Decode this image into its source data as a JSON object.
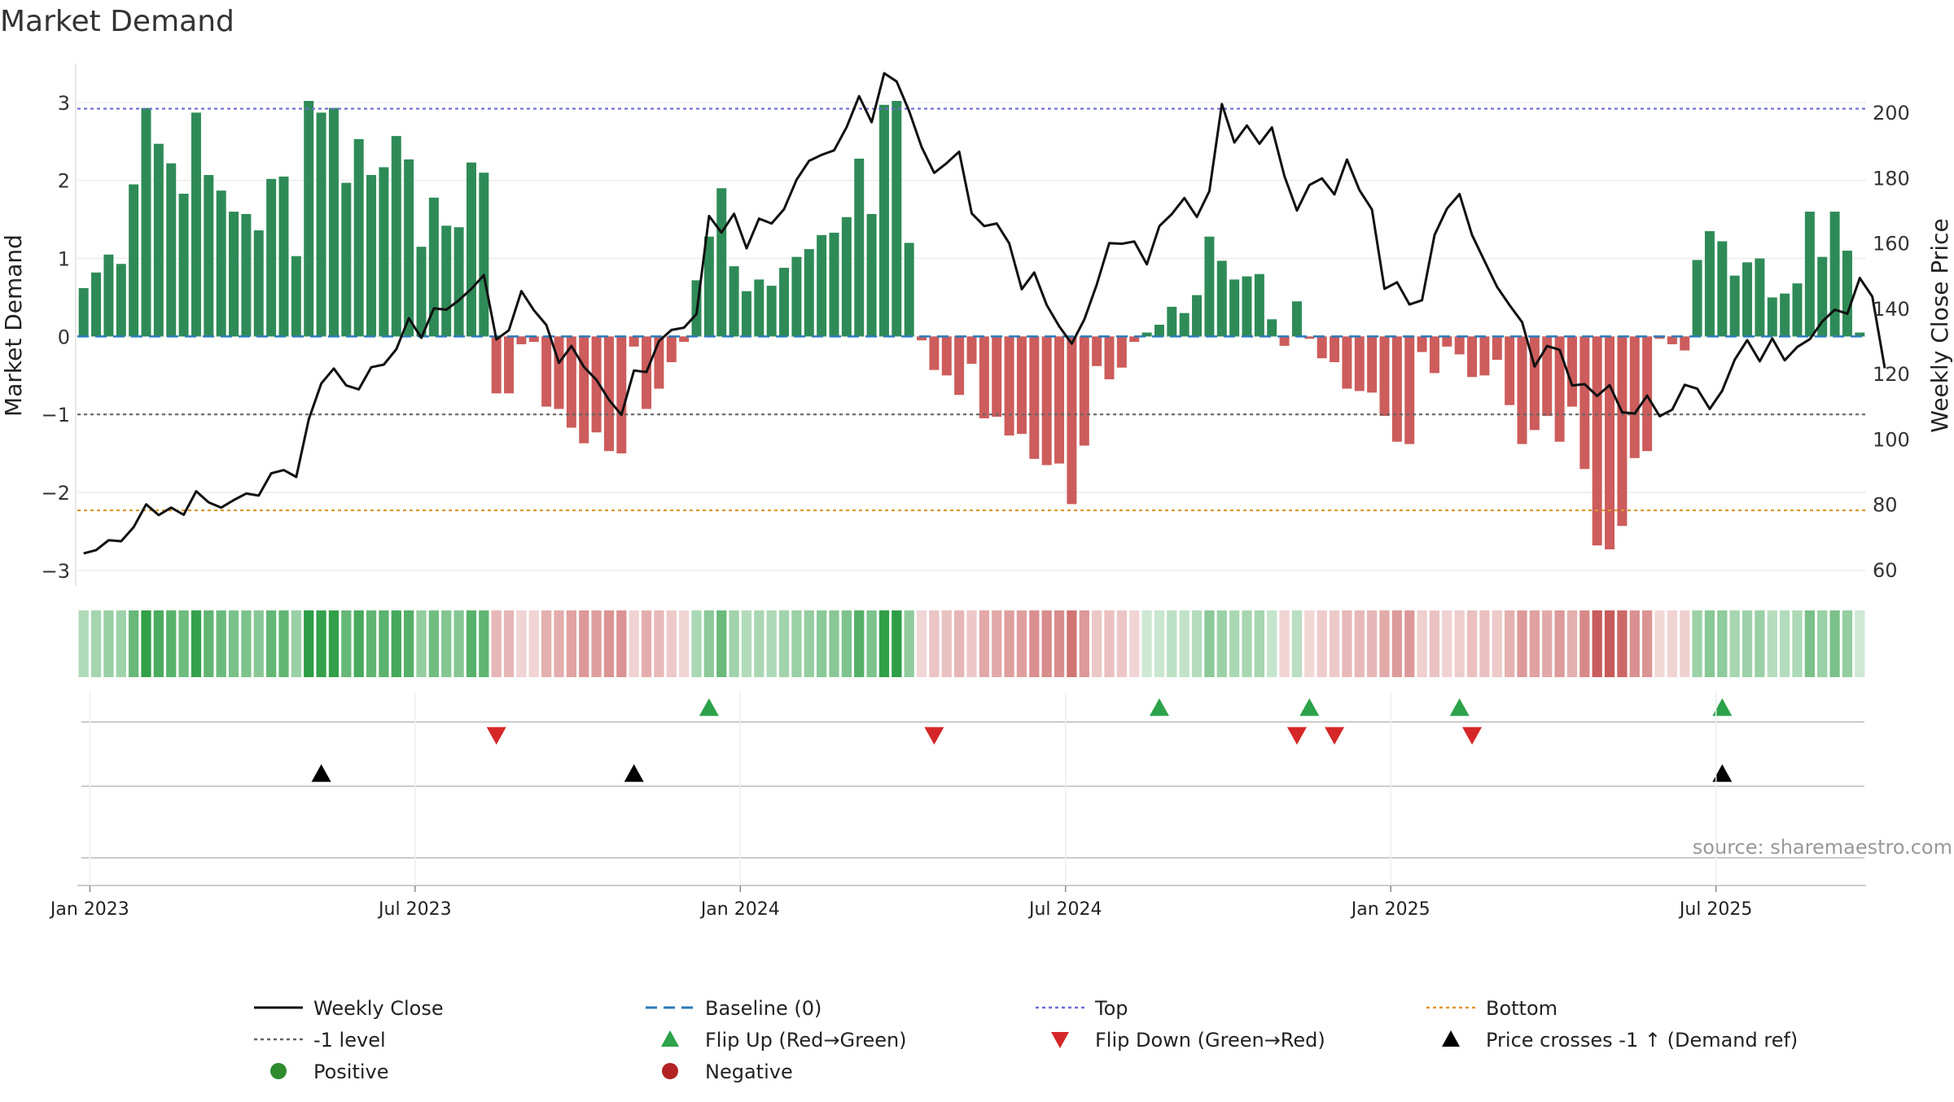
{
  "chart_data": {
    "type": "bar",
    "title": "Market Demand",
    "ylabel_left": "Market Demand",
    "ylabel_right": "Weekly Close Price",
    "ylim_left": [
      -3.2,
      3.5
    ],
    "ylim_right": [
      55,
      215
    ],
    "yticks_left": [
      3,
      2,
      1,
      0,
      -1,
      -2,
      -3
    ],
    "ytick_labels_left": [
      "3",
      "2",
      "1",
      "0",
      "−1",
      "−2",
      "−3"
    ],
    "yticks_right": [
      200,
      180,
      160,
      140,
      120,
      100,
      80,
      60
    ],
    "ytick_labels_right": [
      "200",
      "180",
      "160",
      "140",
      "120",
      "100",
      "80",
      "60"
    ],
    "x_start": "2022-12-26",
    "x_ticks": [
      {
        "label": "Jan 2023",
        "week": 1
      },
      {
        "label": "Jul 2023",
        "week": 27
      },
      {
        "label": "Jan 2024",
        "week": 53
      },
      {
        "label": "Jul 2024",
        "week": 79
      },
      {
        "label": "Jan 2025",
        "week": 105
      },
      {
        "label": "Jul 2025",
        "week": 131
      }
    ],
    "reference_lines": [
      {
        "name": "Top",
        "value": 2.92,
        "color": "#6b6bd6"
      },
      {
        "name": "Bottom",
        "value": -2.23,
        "color": "#e0962c"
      },
      {
        "name": "-1 level",
        "value": -1.0,
        "color": "#666666"
      },
      {
        "name": "Baseline (0)",
        "value": 0.0,
        "color": "#2b7bb9"
      }
    ],
    "demand": [
      0.62,
      0.82,
      1.05,
      0.93,
      1.95,
      2.93,
      2.47,
      2.22,
      1.83,
      2.87,
      2.07,
      1.87,
      1.6,
      1.57,
      1.36,
      2.02,
      2.05,
      1.03,
      3.02,
      2.87,
      2.93,
      1.97,
      2.53,
      2.07,
      2.17,
      2.57,
      2.27,
      1.15,
      1.78,
      1.42,
      1.4,
      2.23,
      2.1,
      -0.73,
      -0.73,
      -0.1,
      -0.07,
      -0.9,
      -0.93,
      -1.17,
      -1.37,
      -1.23,
      -1.47,
      -1.5,
      -0.13,
      -0.93,
      -0.67,
      -0.33,
      -0.07,
      0.72,
      1.28,
      1.9,
      0.9,
      0.58,
      0.73,
      0.65,
      0.88,
      1.02,
      1.12,
      1.3,
      1.33,
      1.53,
      2.28,
      1.57,
      2.97,
      3.02,
      1.2,
      -0.05,
      -0.43,
      -0.5,
      -0.75,
      -0.35,
      -1.05,
      -1.03,
      -1.27,
      -1.25,
      -1.57,
      -1.65,
      -1.63,
      -2.15,
      -1.4,
      -0.38,
      -0.55,
      -0.4,
      -0.07,
      0.05,
      0.15,
      0.38,
      0.3,
      0.53,
      1.28,
      0.97,
      0.73,
      0.77,
      0.8,
      0.22,
      -0.12,
      0.45,
      -0.03,
      -0.28,
      -0.33,
      -0.67,
      -0.7,
      -0.72,
      -1.02,
      -1.35,
      -1.38,
      -0.2,
      -0.47,
      -0.13,
      -0.23,
      -0.52,
      -0.5,
      -0.3,
      -0.88,
      -1.38,
      -1.2,
      -1.02,
      -1.35,
      -0.9,
      -1.7,
      -2.68,
      -2.73,
      -2.43,
      -1.56,
      -1.47,
      -0.03,
      -0.1,
      -0.18,
      0.98,
      1.35,
      1.22,
      0.78,
      0.95,
      1.0,
      0.5,
      0.55,
      0.68,
      1.6,
      1.02,
      1.6,
      1.1,
      0.05
    ],
    "price": [
      65,
      66,
      69,
      68.7,
      73,
      80,
      76.7,
      79,
      76.8,
      84,
      80.6,
      79,
      81.3,
      83.3,
      82.7,
      89.5,
      90.5,
      88.4,
      106,
      117,
      121.6,
      116.4,
      115.2,
      122,
      122.8,
      127.5,
      137,
      131,
      140,
      139.6,
      142.5,
      146,
      150.2,
      130.5,
      133.3,
      145.3,
      139.4,
      134.9,
      123.3,
      128.5,
      122.1,
      118.1,
      112,
      107.4,
      121,
      120.5,
      130,
      133.4,
      134.1,
      138.3,
      168.3,
      163.2,
      169,
      158.4,
      167.5,
      166,
      170.4,
      179.4,
      185.2,
      187,
      188.4,
      195.5,
      205,
      197,
      212,
      209.5,
      200.4,
      189.4,
      181.5,
      184.5,
      188,
      169.1,
      165.2,
      166,
      159.9,
      145.9,
      151,
      141,
      134.5,
      129.2,
      136.6,
      147.3,
      160,
      159.8,
      160.5,
      153.5,
      165.2,
      168.9,
      173.8,
      168,
      175.9,
      202.6,
      190.8,
      196,
      190.4,
      195.4,
      180.5,
      170,
      177.8,
      179.8,
      174.9,
      185.6,
      176.2,
      170.3,
      146,
      148,
      141.2,
      142.5,
      162.5,
      170.6,
      175,
      162.5,
      154.5,
      146.6,
      141,
      135.8,
      122.2,
      128.5,
      127.3,
      116.4,
      116.8,
      113.2,
      116.5,
      108.2,
      107.8,
      113.3,
      107,
      109,
      116.6,
      115.4,
      109.2,
      114.8,
      124.3,
      130.3,
      123.8,
      130.8,
      124.1,
      128.2,
      130.6,
      136,
      139.6,
      138.4,
      149.3,
      143.6,
      121.7
    ],
    "flip_up_weeks": [
      50,
      86,
      98,
      110,
      131
    ],
    "flip_down_weeks": [
      33,
      68,
      97,
      100,
      111
    ],
    "price_cross_weeks": [
      19,
      44,
      131
    ],
    "source": "source: sharemaestro.com",
    "legend": [
      {
        "label": "Weekly Close",
        "symbol": "line",
        "color": "#111111"
      },
      {
        "label": "Baseline (0)",
        "symbol": "dash",
        "color": "#2b7bb9"
      },
      {
        "label": "Top",
        "symbol": "dot",
        "color": "#6b6bd6"
      },
      {
        "label": "Bottom",
        "symbol": "dot",
        "color": "#e0962c"
      },
      {
        "label": "-1 level",
        "symbol": "dot",
        "color": "#666666"
      },
      {
        "label": "Flip Up (Red→Green)",
        "symbol": "tri-up",
        "color": "#2ca24a"
      },
      {
        "label": "Flip Down (Green→Red)",
        "symbol": "tri-down",
        "color": "#d62728"
      },
      {
        "label": "Price crosses -1 ↑ (Demand ref)",
        "symbol": "tri-up",
        "color": "#000000"
      },
      {
        "label": "Positive",
        "symbol": "circle",
        "color": "#2e8b2e"
      },
      {
        "label": "Negative",
        "symbol": "circle",
        "color": "#b22222"
      }
    ]
  }
}
